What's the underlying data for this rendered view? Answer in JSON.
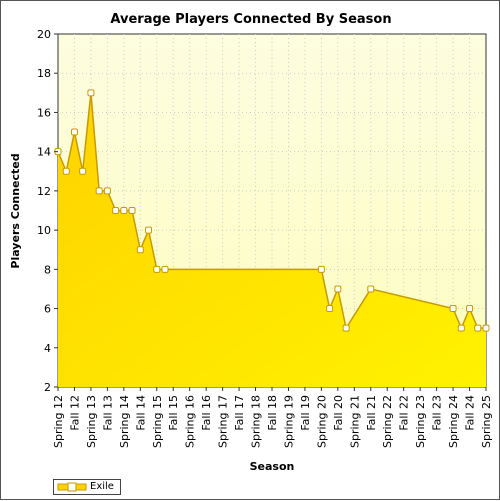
{
  "chart_data": {
    "type": "area",
    "title": "Average Players Connected By Season",
    "xlabel": "Season",
    "ylabel": "Players Connected",
    "ylim": [
      2,
      20
    ],
    "yticks": [
      "2",
      "4",
      "6",
      "8",
      "10",
      "12",
      "14",
      "16",
      "18",
      "20"
    ],
    "categories": [
      "Spring 12",
      "Fall 12",
      "Spring 13",
      "Fall 13",
      "Spring 14",
      "Fall 14",
      "Spring 15",
      "Fall 15",
      "Spring 16",
      "Fall 16",
      "Spring 17",
      "Fall 17",
      "Spring 18",
      "Fall 18",
      "Spring 19",
      "Fall 19",
      "Spring 20",
      "Fall 20",
      "Spring 21",
      "Fall 21",
      "Spring 22",
      "Fall 22",
      "Spring 23",
      "Fall 23",
      "Spring 24",
      "Fall 24",
      "Spring 25"
    ],
    "grid": true,
    "legend_position": "bottom-left",
    "series": [
      {
        "name": "Exile",
        "points": [
          {
            "x": 0.0,
            "y": 14
          },
          {
            "x": 0.5,
            "y": 13
          },
          {
            "x": 1.0,
            "y": 15
          },
          {
            "x": 1.5,
            "y": 13
          },
          {
            "x": 2.0,
            "y": 17
          },
          {
            "x": 2.5,
            "y": 12
          },
          {
            "x": 3.0,
            "y": 12
          },
          {
            "x": 3.5,
            "y": 11
          },
          {
            "x": 4.0,
            "y": 11
          },
          {
            "x": 4.5,
            "y": 11
          },
          {
            "x": 5.0,
            "y": 9
          },
          {
            "x": 5.5,
            "y": 10
          },
          {
            "x": 6.0,
            "y": 8
          },
          {
            "x": 6.5,
            "y": 8
          },
          {
            "x": 16.0,
            "y": 8
          },
          {
            "x": 16.5,
            "y": 6
          },
          {
            "x": 17.0,
            "y": 7
          },
          {
            "x": 17.5,
            "y": 5
          },
          {
            "x": 19.0,
            "y": 7
          },
          {
            "x": 24.0,
            "y": 6
          },
          {
            "x": 24.5,
            "y": 5
          },
          {
            "x": 25.0,
            "y": 6
          },
          {
            "x": 25.5,
            "y": 5
          },
          {
            "x": 26.0,
            "y": 5
          }
        ]
      }
    ],
    "colors": {
      "plot_background_top": "#fdfde0",
      "plot_background_bottom": "#fdfdc0",
      "area_top": "#ffd200",
      "area_bottom": "#fff200",
      "line": "#c79a00",
      "marker_fill": "#ffffff",
      "marker_stroke": "#c79a00",
      "grid": "#cccccc",
      "axis": "#333333"
    }
  },
  "legend": {
    "series_label": "Exile"
  }
}
